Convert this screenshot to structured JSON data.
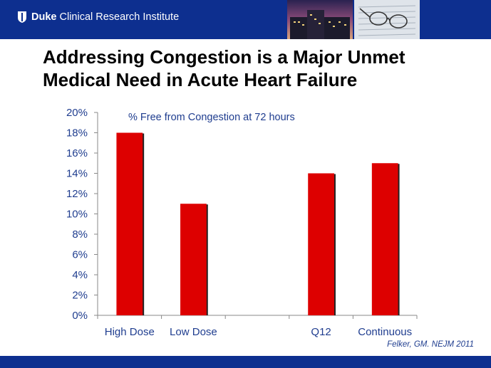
{
  "header": {
    "brand_bold": "Duke",
    "brand_rest": "Clinical Research Institute"
  },
  "slide_title_line1": "Addressing Congestion is a Major Unmet",
  "slide_title_line2": "Medical Need in Acute Heart Failure",
  "citation": "Felker, GM. NEJM 2011",
  "colors": {
    "header": "#0d2f8f",
    "bar": "#dd0000",
    "bar_shadow": "#222222",
    "tick_text": "#1f3d8f"
  },
  "chart_data": {
    "type": "bar",
    "title": "% Free from Congestion at 72 hours",
    "categories": [
      "High Dose",
      "Low Dose",
      "",
      "Q12",
      "Continuous"
    ],
    "values": [
      18,
      11,
      null,
      14,
      15
    ],
    "ylim": [
      0,
      20
    ],
    "yticks": [
      0,
      2,
      4,
      6,
      8,
      10,
      12,
      14,
      16,
      18,
      20
    ],
    "ytick_labels": [
      "0%",
      "2%",
      "4%",
      "6%",
      "8%",
      "10%",
      "12%",
      "14%",
      "16%",
      "18%",
      "20%"
    ],
    "xlabel": "",
    "ylabel": "",
    "grid": false,
    "legend": "none"
  }
}
